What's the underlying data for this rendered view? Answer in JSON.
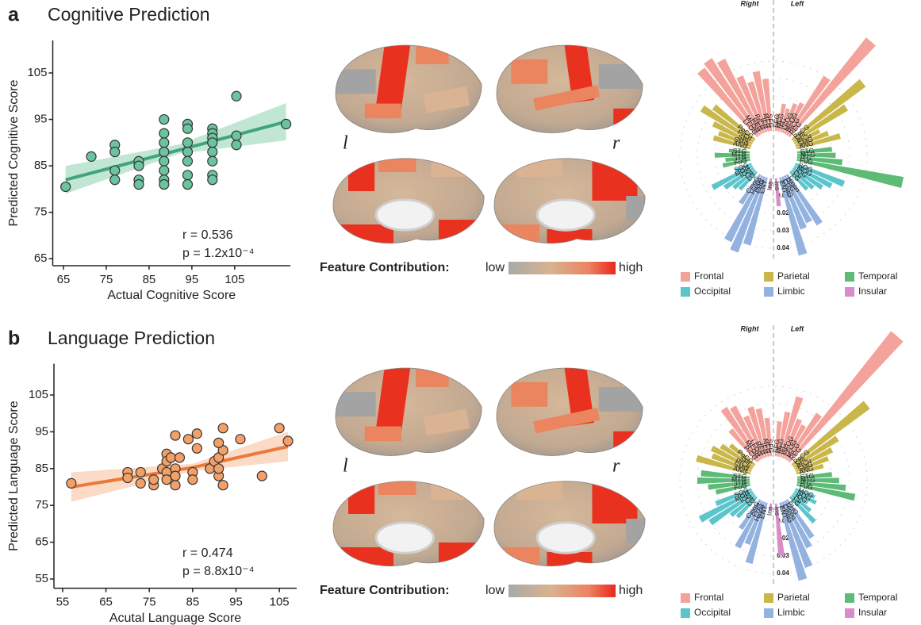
{
  "panels": [
    {
      "label": "a",
      "title": "Cognitive Prediction"
    },
    {
      "label": "b",
      "title": "Language Prediction"
    }
  ],
  "brain_maps": [
    {
      "left_label": "l",
      "right_label": "r",
      "colorbar_title": "Feature Contribution:",
      "low": "low",
      "high": "high"
    },
    {
      "left_label": "l",
      "right_label": "r",
      "colorbar_title": "Feature Contribution:",
      "low": "low",
      "high": "high"
    }
  ],
  "chart_data": [
    {
      "type": "scatter",
      "xlabel": "Actual Cognitive Score",
      "ylabel": "Predicted Cognitive Score",
      "color": "#6cc3a0",
      "line_color": "#3fa57a",
      "band_color": "#9fd9bd",
      "x": [
        65.5,
        71.5,
        77,
        77,
        77,
        77,
        82.6,
        82.6,
        82.6,
        82.6,
        88.5,
        88.5,
        88.5,
        88.5,
        88.5,
        88.5,
        88.5,
        88.5,
        94,
        94,
        94,
        94,
        94,
        94,
        94,
        99.8,
        99.8,
        99.8,
        99.8,
        99.8,
        99.8,
        99.8,
        99.8,
        105.4,
        105.4,
        105.4,
        117
      ],
      "y": [
        80.5,
        87,
        89.5,
        88,
        84,
        82,
        86,
        85,
        82,
        81,
        95,
        92,
        90,
        88,
        86,
        84,
        82,
        81,
        94,
        93,
        90,
        88,
        86,
        83,
        81,
        93,
        92,
        91,
        90,
        88,
        86,
        83,
        82,
        100,
        91.5,
        89.5,
        94
      ],
      "fit": {
        "x": [
          65.5,
          92,
          117
        ],
        "y": [
          82,
          88.4,
          94.5
        ],
        "lower": [
          79,
          87.6,
          90.5
        ],
        "upper": [
          85,
          89.6,
          98.5
        ]
      },
      "xlim": [
        62.5,
        118
      ],
      "ylim": [
        63.5,
        112
      ],
      "xticks": [
        65,
        75,
        85,
        95,
        105
      ],
      "yticks": [
        65,
        75,
        85,
        95,
        105
      ],
      "annotations": [
        "r = 0.536",
        "p = 1.2x10⁻⁴"
      ]
    },
    {
      "type": "radial_bar",
      "rticks": [
        0.01,
        0.02,
        0.03,
        0.04
      ],
      "groups": [
        {
          "name": "Frontal",
          "color": "#f4a39c"
        },
        {
          "name": "Parietal",
          "color": "#c9b74a"
        },
        {
          "name": "Temporal",
          "color": "#5dbb77"
        },
        {
          "name": "Occipital",
          "color": "#5cc5cb"
        },
        {
          "name": "Limbic",
          "color": "#93b2e0"
        },
        {
          "name": "Insular",
          "color": "#d98cc8"
        }
      ],
      "series": [
        {
          "name": "Right",
          "categories": [
            "SFG",
            "MFG",
            "IFG",
            "PrCG",
            "REG",
            "MFOG",
            "LFOG",
            "PoCG",
            "PrCu",
            "SPL",
            "SMG",
            "ANG",
            "STG",
            "MTG",
            "ITG",
            "FuG",
            "SOG",
            "MOG",
            "IOG",
            "Cu",
            "LG",
            "CingG",
            "Hippo",
            "PHG",
            "ENT",
            "Ins"
          ],
          "groups": [
            "Frontal",
            "Frontal",
            "Frontal",
            "Frontal",
            "Frontal",
            "Frontal",
            "Frontal",
            "Parietal",
            "Parietal",
            "Parietal",
            "Parietal",
            "Parietal",
            "Temporal",
            "Temporal",
            "Temporal",
            "Temporal",
            "Occipital",
            "Occipital",
            "Occipital",
            "Occipital",
            "Occipital",
            "Limbic",
            "Limbic",
            "Limbic",
            "Limbic",
            "Insular"
          ],
          "values": [
            0.03,
            0.035,
            0.03,
            0.035,
            0.048,
            0.052,
            0.05,
            0.03,
            0.035,
            0.025,
            0.02,
            0.022,
            0.012,
            0.02,
            0.014,
            0.016,
            0.01,
            0.026,
            0.02,
            0.016,
            0.014,
            0.02,
            0.042,
            0.046,
            0.04,
            0.006
          ]
        },
        {
          "name": "Left",
          "categories": [
            "SFG",
            "MFG",
            "IFG",
            "LFOG",
            "MFOG",
            "PrCG",
            "REG",
            "PoCG",
            "SPL",
            "PrCu",
            "SMG",
            "ANG",
            "STG",
            "MTG",
            "ITG",
            "FuG",
            "SOG",
            "MOG",
            "IOG",
            "Cu",
            "LG",
            "Hippo",
            "PHG",
            "CingG",
            "ENT",
            "Ins"
          ],
          "groups": [
            "Frontal",
            "Frontal",
            "Frontal",
            "Frontal",
            "Frontal",
            "Frontal",
            "Frontal",
            "Parietal",
            "Parietal",
            "Parietal",
            "Parietal",
            "Parietal",
            "Temporal",
            "Temporal",
            "Temporal",
            "Temporal",
            "Occipital",
            "Occipital",
            "Occipital",
            "Occipital",
            "Occipital",
            "Limbic",
            "Limbic",
            "Limbic",
            "Limbic",
            "Insular"
          ],
          "values": [
            0.01,
            0.016,
            0.014,
            0.018,
            0.02,
            0.04,
            0.072,
            0.052,
            0.036,
            0.016,
            0.02,
            0.026,
            0.02,
            0.022,
            0.026,
            0.062,
            0.03,
            0.024,
            0.02,
            0.016,
            0.014,
            0.034,
            0.03,
            0.032,
            0.046,
            0.016
          ]
        }
      ]
    },
    {
      "type": "scatter",
      "xlabel": "Acutal Language Score",
      "ylabel": "Predicted Language Score",
      "color": "#f2a068",
      "line_color": "#ea7a3a",
      "band_color": "#f9c8a8",
      "x": [
        57,
        70,
        70,
        73,
        73,
        76,
        76,
        78,
        79,
        79,
        79,
        79,
        80,
        81,
        81,
        81,
        81,
        82,
        84,
        85,
        85,
        86,
        86,
        89,
        90,
        91,
        91,
        91,
        92,
        92,
        92,
        91,
        96,
        101,
        105,
        107
      ],
      "y": [
        81,
        84,
        82.5,
        84,
        81,
        80.5,
        82,
        85,
        89,
        87,
        84,
        82,
        88,
        94,
        85,
        80.5,
        83,
        88,
        93,
        84,
        82,
        94.5,
        90.5,
        85,
        87,
        83,
        85,
        88,
        80.5,
        96,
        90,
        92,
        93,
        83,
        96,
        92.5
      ],
      "fit": {
        "x": [
          57,
          85,
          107
        ],
        "y": [
          80,
          85.3,
          91
        ],
        "lower": [
          76,
          84.3,
          87
        ],
        "upper": [
          84,
          86.3,
          95
        ]
      },
      "xlim": [
        53,
        109
      ],
      "ylim": [
        52.5,
        113.5
      ],
      "xticks": [
        55,
        65,
        75,
        85,
        95,
        105
      ],
      "yticks": [
        55,
        65,
        75,
        85,
        95,
        105
      ],
      "annotations": [
        "r = 0.474",
        "p = 8.8x10⁻⁴"
      ]
    },
    {
      "type": "radial_bar",
      "rticks": [
        0.01,
        0.02,
        0.03,
        0.04
      ],
      "groups": [
        {
          "name": "Frontal",
          "color": "#f4a39c"
        },
        {
          "name": "Parietal",
          "color": "#c9b74a"
        },
        {
          "name": "Temporal",
          "color": "#5dbb77"
        },
        {
          "name": "Occipital",
          "color": "#5cc5cb"
        },
        {
          "name": "Limbic",
          "color": "#93b2e0"
        },
        {
          "name": "Insular",
          "color": "#d98cc8"
        }
      ],
      "series": [
        {
          "name": "Right",
          "categories": [
            "SFG",
            "MFG",
            "IFG",
            "REG",
            "LFOG",
            "MFOG",
            "PrCG",
            "PoCG",
            "SPL",
            "PrCu",
            "SMG",
            "ANG",
            "STG",
            "MTG",
            "ITG",
            "FuG",
            "SOG",
            "MOG",
            "IOG",
            "Cu",
            "LG",
            "CingG",
            "PHG",
            "Hippo",
            "ENT",
            "Ins"
          ],
          "groups": [
            "Frontal",
            "Frontal",
            "Frontal",
            "Frontal",
            "Frontal",
            "Frontal",
            "Frontal",
            "Parietal",
            "Parietal",
            "Parietal",
            "Parietal",
            "Parietal",
            "Temporal",
            "Temporal",
            "Temporal",
            "Temporal",
            "Occipital",
            "Occipital",
            "Occipital",
            "Occipital",
            "Occipital",
            "Limbic",
            "Limbic",
            "Limbic",
            "Limbic",
            "Insular"
          ],
          "values": [
            0.022,
            0.028,
            0.03,
            0.026,
            0.034,
            0.036,
            0.024,
            0.018,
            0.022,
            0.026,
            0.024,
            0.032,
            0.028,
            0.03,
            0.024,
            0.02,
            0.022,
            0.034,
            0.03,
            0.018,
            0.016,
            0.02,
            0.03,
            0.026,
            0.036,
            0.004
          ]
        },
        {
          "name": "Left",
          "categories": [
            "SFG",
            "MFG",
            "IFG",
            "MFOG",
            "LFOG",
            "PrCG",
            "REG",
            "PoCG",
            "SPL",
            "PrCu",
            "SMG",
            "ANG",
            "STG",
            "MTG",
            "ITG",
            "FuG",
            "MOG",
            "SOG",
            "IOG",
            "Cu",
            "LG",
            "PHG",
            "Hippo",
            "CingG",
            "ENT",
            "Ins"
          ],
          "groups": [
            "Frontal",
            "Frontal",
            "Frontal",
            "Frontal",
            "Frontal",
            "Frontal",
            "Frontal",
            "Parietal",
            "Parietal",
            "Parietal",
            "Parietal",
            "Parietal",
            "Temporal",
            "Temporal",
            "Temporal",
            "Temporal",
            "Occipital",
            "Occipital",
            "Occipital",
            "Occipital",
            "Occipital",
            "Limbic",
            "Limbic",
            "Limbic",
            "Limbic",
            "Insular"
          ],
          "values": [
            0.02,
            0.026,
            0.036,
            0.024,
            0.022,
            0.032,
            0.095,
            0.055,
            0.03,
            0.024,
            0.02,
            0.016,
            0.02,
            0.024,
            0.028,
            0.034,
            0.012,
            0.014,
            0.01,
            0.014,
            0.02,
            0.026,
            0.03,
            0.04,
            0.046,
            0.03
          ]
        }
      ]
    }
  ]
}
